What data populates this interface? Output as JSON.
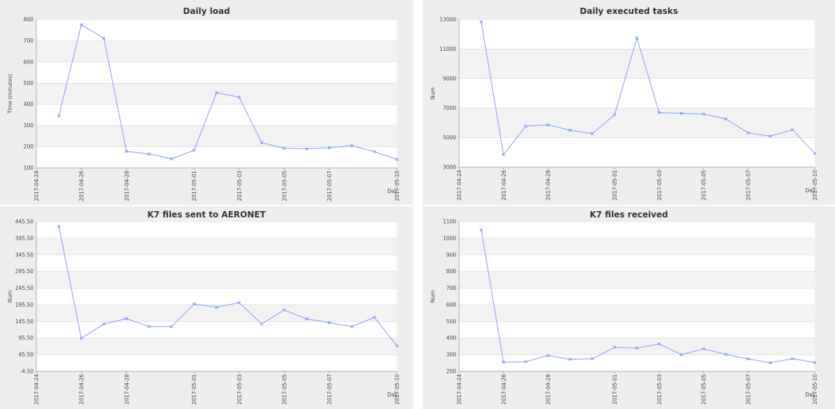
{
  "charts": [
    {
      "title": "Daily load",
      "ylabel": "Time (minutes)",
      "xlabel": "Day",
      "yticks": [
        100,
        200,
        300,
        400,
        500,
        600,
        700,
        800
      ],
      "ytick_labels": [
        "100",
        "200",
        "300",
        "400",
        "500",
        "600",
        "700",
        "800"
      ],
      "ylim": [
        100,
        800
      ],
      "xtick_labels": [
        "2017-04-24",
        "2017-04-26",
        "2017-04-28",
        "2017-05-01",
        "2017-05-03",
        "2017-05-05",
        "2017-05-07",
        "2017-05-10"
      ]
    },
    {
      "title": "Daily executed tasks",
      "ylabel": "Num",
      "xlabel": "Day",
      "yticks": [
        3000,
        5000,
        7000,
        9000,
        11000,
        13000
      ],
      "ytick_labels": [
        "3000",
        "5000",
        "7000",
        "9000",
        "11000",
        "13000"
      ],
      "ylim": [
        3000,
        13000
      ],
      "xtick_labels": [
        "2017-04-24",
        "2017-04-26",
        "2017-04-28",
        "2017-05-01",
        "2017-05-03",
        "2017-05-05",
        "2017-05-07",
        "2017-05-10"
      ]
    },
    {
      "title": "K7 files sent to AERONET",
      "ylabel": "Num",
      "xlabel": "Day",
      "yticks": [
        -4.5,
        45.5,
        95.5,
        145.5,
        195.5,
        245.5,
        295.5,
        345.5,
        395.5,
        445.5
      ],
      "ytick_labels": [
        "-4.50",
        "45.50",
        "95.50",
        "145.50",
        "195.50",
        "245.50",
        "295.50",
        "345.50",
        "395.50",
        "445.50"
      ],
      "ylim": [
        -4.5,
        445.5
      ],
      "xtick_labels": [
        "2017-04-24",
        "2017-04-26",
        "2017-04-28",
        "2017-05-01",
        "2017-05-03",
        "2017-05-05",
        "2017-05-07",
        "2017-05-10"
      ]
    },
    {
      "title": "K7 files received",
      "ylabel": "Num",
      "xlabel": "Day",
      "yticks": [
        200,
        300,
        400,
        500,
        600,
        700,
        800,
        900,
        1000,
        1100
      ],
      "ytick_labels": [
        "200",
        "300",
        "400",
        "500",
        "600",
        "700",
        "800",
        "900",
        "1000",
        "1100"
      ],
      "ylim": [
        200,
        1100
      ],
      "xtick_labels": [
        "2017-04-24",
        "2017-04-26",
        "2017-04-28",
        "2017-05-01",
        "2017-05-03",
        "2017-05-05",
        "2017-05-07",
        "2017-05-10"
      ]
    }
  ],
  "chart_data": [
    {
      "type": "line",
      "title": "Daily load",
      "xlabel": "Day",
      "ylabel": "Time (minutes)",
      "ylim": [
        100,
        800
      ],
      "xlim": [
        "2017-04-24",
        "2017-05-10"
      ],
      "grid": true,
      "x": [
        "2017-04-25",
        "2017-04-26",
        "2017-04-27",
        "2017-04-28",
        "2017-04-29",
        "2017-04-30",
        "2017-05-01",
        "2017-05-02",
        "2017-05-03",
        "2017-05-04",
        "2017-05-05",
        "2017-05-06",
        "2017-05-07",
        "2017-05-08",
        "2017-05-09",
        "2017-05-10"
      ],
      "series": [
        {
          "values": [
            345,
            775,
            712,
            178,
            166,
            143,
            183,
            455,
            434,
            219,
            193,
            190,
            195,
            205,
            177,
            140
          ]
        }
      ]
    },
    {
      "type": "line",
      "title": "Daily executed tasks",
      "xlabel": "Day",
      "ylabel": "Num",
      "ylim": [
        3000,
        13000
      ],
      "xlim": [
        "2017-04-24",
        "2017-05-10"
      ],
      "grid": true,
      "x": [
        "2017-04-25",
        "2017-04-26",
        "2017-04-27",
        "2017-04-28",
        "2017-04-29",
        "2017-04-30",
        "2017-05-01",
        "2017-05-02",
        "2017-05-03",
        "2017-05-04",
        "2017-05-05",
        "2017-05-06",
        "2017-05-07",
        "2017-05-08",
        "2017-05-09",
        "2017-05-10"
      ],
      "series": [
        {
          "values": [
            12850,
            3850,
            5780,
            5870,
            5500,
            5280,
            6550,
            11750,
            6700,
            6650,
            6600,
            6270,
            5330,
            5100,
            5540,
            3930
          ]
        }
      ]
    },
    {
      "type": "line",
      "title": "K7 files sent to AERONET",
      "xlabel": "Day",
      "ylabel": "Num",
      "ylim": [
        -4.5,
        445.5
      ],
      "xlim": [
        "2017-04-24",
        "2017-05-10"
      ],
      "grid": true,
      "x": [
        "2017-04-25",
        "2017-04-26",
        "2017-04-27",
        "2017-04-28",
        "2017-04-29",
        "2017-04-30",
        "2017-05-01",
        "2017-05-02",
        "2017-05-03",
        "2017-05-04",
        "2017-05-05",
        "2017-05-06",
        "2017-05-07",
        "2017-05-08",
        "2017-05-09",
        "2017-05-10"
      ],
      "series": [
        {
          "values": [
            431,
            95,
            138,
            154,
            130,
            130,
            198,
            188,
            202,
            138,
            180,
            153,
            142,
            130,
            158,
            72
          ]
        }
      ]
    },
    {
      "type": "line",
      "title": "K7 files received",
      "xlabel": "Day",
      "ylabel": "Num",
      "ylim": [
        200,
        1100
      ],
      "xlim": [
        "2017-04-24",
        "2017-05-10"
      ],
      "grid": true,
      "x": [
        "2017-04-25",
        "2017-04-26",
        "2017-04-27",
        "2017-04-28",
        "2017-04-29",
        "2017-04-30",
        "2017-05-01",
        "2017-05-02",
        "2017-05-03",
        "2017-05-04",
        "2017-05-05",
        "2017-05-06",
        "2017-05-07",
        "2017-05-08",
        "2017-05-09",
        "2017-05-10"
      ],
      "series": [
        {
          "values": [
            1050,
            255,
            258,
            295,
            272,
            276,
            345,
            340,
            365,
            300,
            336,
            302,
            275,
            252,
            276,
            253
          ]
        }
      ]
    }
  ]
}
